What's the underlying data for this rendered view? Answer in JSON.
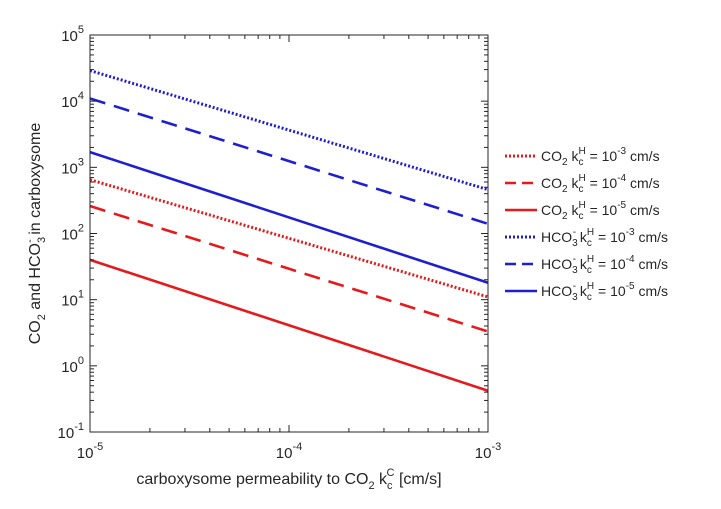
{
  "chart_data": {
    "type": "line",
    "xlabel": "carboxysome permeability to CO₂ k꜀ᶜ [cm/s]",
    "ylabel": "CO₂ and HCO₃⁻ in carboxysome",
    "xscale": "log",
    "yscale": "log",
    "xlim": [
      1e-05,
      0.001
    ],
    "ylim": [
      0.1,
      100000
    ],
    "x_ticks": [
      1e-05,
      0.0001,
      0.001
    ],
    "x_tick_labels": [
      {
        "base": "10",
        "exp": "-5"
      },
      {
        "base": "10",
        "exp": "-4"
      },
      {
        "base": "10",
        "exp": "-3"
      }
    ],
    "y_ticks": [
      0.1,
      1,
      10,
      100,
      1000,
      10000,
      100000
    ],
    "y_tick_labels": [
      {
        "base": "10",
        "exp": "-1"
      },
      {
        "base": "10",
        "exp": "0"
      },
      {
        "base": "10",
        "exp": "1"
      },
      {
        "base": "10",
        "exp": "2"
      },
      {
        "base": "10",
        "exp": "3"
      },
      {
        "base": "10",
        "exp": "4"
      },
      {
        "base": "10",
        "exp": "5"
      }
    ],
    "grid": false,
    "legend_position": "outside-right",
    "series": [
      {
        "name": "CO₂ kᴴ = 10⁻³ cm/s",
        "legend": {
          "species": "CO",
          "sub": "2",
          "sup": "",
          "k": "k",
          "ksub": "c",
          "ksup": "H",
          "rest": " = 10",
          "exp": "-3",
          "unit": " cm/s"
        },
        "color": "#e41a1c",
        "style": "dotted",
        "x": [
          1e-05,
          0.001
        ],
        "y": [
          650,
          11
        ]
      },
      {
        "name": "CO₂ kᴴ = 10⁻⁴ cm/s",
        "legend": {
          "species": "CO",
          "sub": "2",
          "sup": "",
          "k": "k",
          "ksub": "c",
          "ksup": "H",
          "rest": " = 10",
          "exp": "-4",
          "unit": " cm/s"
        },
        "color": "#e41a1c",
        "style": "dashed",
        "x": [
          1e-05,
          0.001
        ],
        "y": [
          260,
          3.3
        ]
      },
      {
        "name": "CO₂ kᴴ = 10⁻⁵ cm/s",
        "legend": {
          "species": "CO",
          "sub": "2",
          "sup": "",
          "k": "k",
          "ksub": "c",
          "ksup": "H",
          "rest": " = 10",
          "exp": "-5",
          "unit": " cm/s"
        },
        "color": "#e41a1c",
        "style": "solid",
        "x": [
          1e-05,
          0.001
        ],
        "y": [
          40,
          0.42
        ]
      },
      {
        "name": "HCO₃⁻ kᴴ = 10⁻³ cm/s",
        "legend": {
          "species": "HCO",
          "sub": "3",
          "sup": "-",
          "k": "k",
          "ksub": "c",
          "ksup": "H",
          "rest": " = 10",
          "exp": "-3",
          "unit": " cm/s"
        },
        "color": "#1f1fcf",
        "style": "dotted",
        "x": [
          1e-05,
          0.001
        ],
        "y": [
          29000,
          460
        ]
      },
      {
        "name": "HCO₃⁻ kᴴ = 10⁻⁴ cm/s",
        "legend": {
          "species": "HCO",
          "sub": "3",
          "sup": "-",
          "k": "k",
          "ksub": "c",
          "ksup": "H",
          "rest": " = 10",
          "exp": "-4",
          "unit": " cm/s"
        },
        "color": "#1f1fcf",
        "style": "dashed",
        "x": [
          1e-05,
          0.001
        ],
        "y": [
          11000,
          140
        ]
      },
      {
        "name": "HCO₃⁻ kᴴ = 10⁻⁵ cm/s",
        "legend": {
          "species": "HCO",
          "sub": "3",
          "sup": "-",
          "k": "k",
          "ksub": "c",
          "ksup": "H",
          "rest": " = 10",
          "exp": "-5",
          "unit": " cm/s"
        },
        "color": "#1f1fcf",
        "style": "solid",
        "x": [
          1e-05,
          0.001
        ],
        "y": [
          1700,
          18
        ]
      }
    ]
  }
}
